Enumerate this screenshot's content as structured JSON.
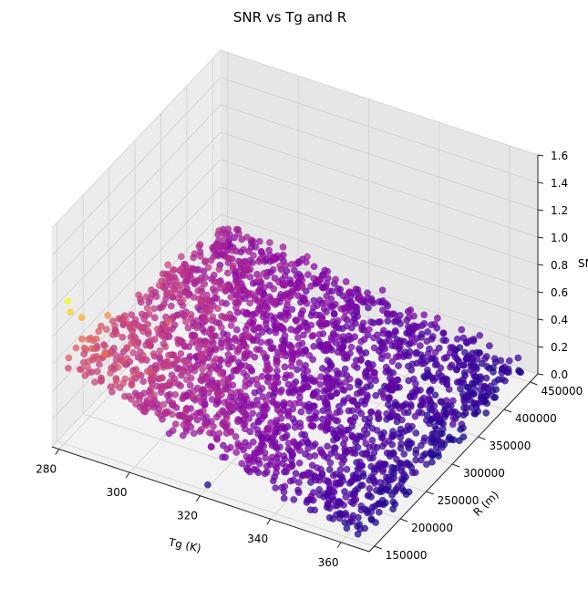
{
  "chart_data": {
    "type": "scatter",
    "projection": "3d",
    "title": "SNR vs Tg and R",
    "xlabel": "Tg (K)",
    "ylabel": "R (m)",
    "zlabel": "SNR",
    "zlabel_visible": "SN",
    "xlim": [
      278,
      368
    ],
    "ylim": [
      140000,
      465000
    ],
    "zlim": [
      0,
      1.6
    ],
    "x_ticks": [
      "280",
      "300",
      "320",
      "340",
      "360"
    ],
    "y_ticks": [
      "150000",
      "200000",
      "250000",
      "300000",
      "350000",
      "400000",
      "450000"
    ],
    "z_ticks": [
      "0.0",
      "0.2",
      "0.4",
      "0.6",
      "0.8",
      "1.0",
      "1.2",
      "1.4",
      "1.6"
    ],
    "colormap": "plasma",
    "grid": true,
    "x_range": [
      280,
      365
    ],
    "y_range": [
      150000,
      460000
    ],
    "points_sample": [
      {
        "x": 281,
        "y": 150000,
        "z": 1.05
      },
      {
        "x": 281,
        "y": 155000,
        "z": 0.95
      },
      {
        "x": 282,
        "y": 170000,
        "z": 0.86
      },
      {
        "x": 285,
        "y": 200000,
        "z": 0.78
      },
      {
        "x": 290,
        "y": 160000,
        "z": 0.7
      },
      {
        "x": 295,
        "y": 250000,
        "z": 0.62
      },
      {
        "x": 300,
        "y": 180000,
        "z": 0.58
      },
      {
        "x": 310,
        "y": 300000,
        "z": 0.45
      },
      {
        "x": 320,
        "y": 200000,
        "z": 0.4
      },
      {
        "x": 330,
        "y": 350000,
        "z": 0.28
      },
      {
        "x": 340,
        "y": 250000,
        "z": 0.22
      },
      {
        "x": 350,
        "y": 400000,
        "z": 0.15
      },
      {
        "x": 360,
        "y": 300000,
        "z": 0.1
      },
      {
        "x": 365,
        "y": 450000,
        "z": 0.05
      },
      {
        "x": 320,
        "y": 155000,
        "z": 0.02
      },
      {
        "x": 300,
        "y": 420000,
        "z": 0.3
      }
    ]
  }
}
